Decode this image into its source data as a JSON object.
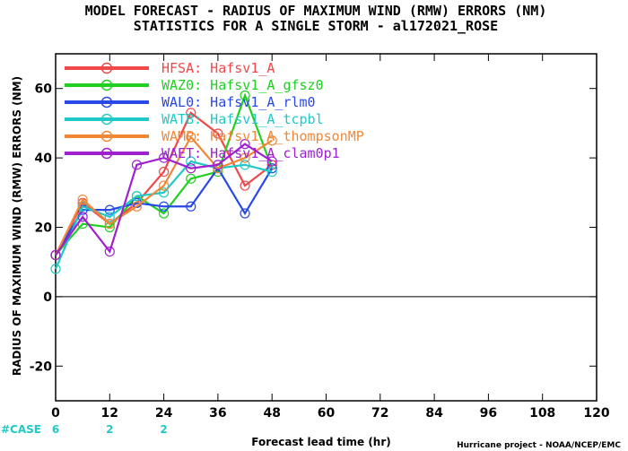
{
  "chart_data": {
    "type": "line",
    "title": "MODEL FORECAST - RADIUS OF MAXIMUM WIND (RMW) ERRORS (NM)",
    "subtitle": "STATISTICS FOR A SINGLE STORM - al172021_ROSE",
    "xlabel": "Forecast lead time (hr)",
    "ylabel": "RADIUS OF MAXIMUM WIND (RMW) ERRORS (NM)",
    "xlim": [
      0,
      120
    ],
    "ylim": [
      -30,
      70
    ],
    "xticks": [
      0,
      12,
      24,
      36,
      48,
      60,
      72,
      84,
      96,
      108,
      120
    ],
    "yticks": [
      -20,
      0,
      20,
      40,
      60
    ],
    "ytick_labels": [
      "-20",
      "0",
      "20",
      "40",
      "60"
    ],
    "grid": false,
    "zero_line": true,
    "legend_position": "top-left",
    "series": [
      {
        "name": "HFSA: Hafsv1_A",
        "color": "#f04848",
        "x": [
          0,
          6,
          12,
          18,
          24,
          30,
          36,
          42,
          48
        ],
        "y": [
          12,
          27,
          21,
          27,
          36,
          53,
          47,
          32,
          38
        ]
      },
      {
        "name": "WAZ0: Hafsv1_A_gfsz0",
        "color": "#20d020",
        "x": [
          0,
          6,
          12,
          18,
          24,
          30,
          36,
          42,
          48
        ],
        "y": [
          12,
          21,
          20,
          29,
          24,
          34,
          36,
          58,
          37
        ]
      },
      {
        "name": "WAL0: Hafsv1_A_rlm0",
        "color": "#2848e8",
        "x": [
          0,
          6,
          12,
          18,
          24,
          30,
          36,
          42,
          48
        ],
        "y": [
          12,
          25,
          25,
          27,
          26,
          26,
          37,
          24,
          37
        ]
      },
      {
        "name": "WATB: Hafsv1_A_tcpbl",
        "color": "#20c8c8",
        "x": [
          0,
          6,
          12,
          18,
          24,
          30,
          36,
          42,
          48
        ],
        "y": [
          8,
          26,
          23,
          29,
          30,
          39,
          37,
          38,
          36
        ]
      },
      {
        "name": "WAMP: Hafsv1_A_thompsonMP",
        "color": "#f08838",
        "x": [
          0,
          6,
          12,
          18,
          24,
          30,
          36,
          42,
          48
        ],
        "y": [
          12,
          28,
          21,
          26,
          32,
          46,
          37,
          40,
          45
        ]
      },
      {
        "name": "WAET: Hafsv1_A_clam0p1",
        "color": "#a020d0",
        "x": [
          0,
          6,
          12,
          18,
          24,
          30,
          36,
          42,
          48
        ],
        "y": [
          12,
          23,
          13,
          38,
          40,
          37,
          38,
          44,
          39
        ]
      }
    ],
    "case_counts": {
      "label": "#CASE",
      "x": [
        0,
        12,
        24
      ],
      "values": [
        "6",
        "2",
        "2"
      ],
      "color": "#20c8c8"
    }
  },
  "footer": {
    "credit": "Hurricane project - NOAA/NCEP/EMC"
  }
}
